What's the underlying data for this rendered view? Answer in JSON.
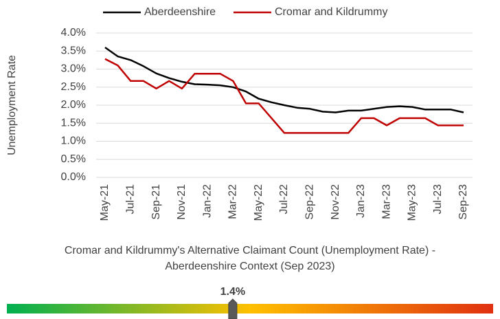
{
  "chart_data": [
    {
      "type": "line",
      "ylabel": "Unemployment Rate",
      "categories": [
        "May-21",
        null,
        "Jul-21",
        null,
        "Sep-21",
        null,
        "Nov-21",
        null,
        "Jan-22",
        null,
        "Mar-22",
        null,
        "May-22",
        null,
        "Jul-22",
        null,
        "Sep-22",
        null,
        "Nov-22",
        null,
        "Jan-23",
        null,
        "Mar-23",
        null,
        "May-23",
        null,
        "Jul-23",
        null,
        "Sep-23"
      ],
      "series": [
        {
          "name": "Aberdeenshire",
          "color": "#000000",
          "values": [
            3.6,
            3.35,
            3.25,
            3.08,
            2.88,
            2.75,
            2.65,
            2.58,
            2.57,
            2.55,
            2.5,
            2.38,
            2.18,
            2.08,
            2.0,
            1.93,
            1.9,
            1.82,
            1.8,
            1.85,
            1.85,
            1.9,
            1.95,
            1.97,
            1.95,
            1.88,
            1.88,
            1.88,
            1.8
          ]
        },
        {
          "name": "Cromar and Kildrummy",
          "color": "#c00000",
          "values": [
            3.28,
            3.1,
            2.67,
            2.67,
            2.46,
            2.67,
            2.46,
            2.87,
            2.87,
            2.87,
            2.67,
            2.05,
            2.05,
            1.64,
            1.23,
            1.23,
            1.23,
            1.23,
            1.23,
            1.23,
            1.64,
            1.64,
            1.44,
            1.64,
            1.64,
            1.64,
            1.44,
            1.44,
            1.44
          ]
        }
      ],
      "ylim": [
        0,
        4
      ],
      "yticks": [
        {
          "value": 0,
          "label": "0.0%"
        },
        {
          "value": 0.5,
          "label": "0.5%"
        },
        {
          "value": 1,
          "label": "1.0%"
        },
        {
          "value": 1.5,
          "label": "1.5%"
        },
        {
          "value": 2,
          "label": "2.0%"
        },
        {
          "value": 2.5,
          "label": "2.5%"
        },
        {
          "value": 3,
          "label": "3.0%"
        },
        {
          "value": 3.5,
          "label": "3.5%"
        },
        {
          "value": 4,
          "label": "4.0%"
        }
      ],
      "grid": true,
      "legend": "top"
    },
    {
      "type": "gauge",
      "title": [
        "Cromar and Kildrummy's Alternative Claimant Count (Unemployment Rate) -",
        "Aberdeenshire Context (Sep 2023)"
      ],
      "value": 1.44,
      "value_label": "1.4%",
      "xlim": [
        0,
        3.1
      ],
      "colors": [
        "#00b050",
        "#ffc000",
        "#e03010"
      ]
    }
  ]
}
